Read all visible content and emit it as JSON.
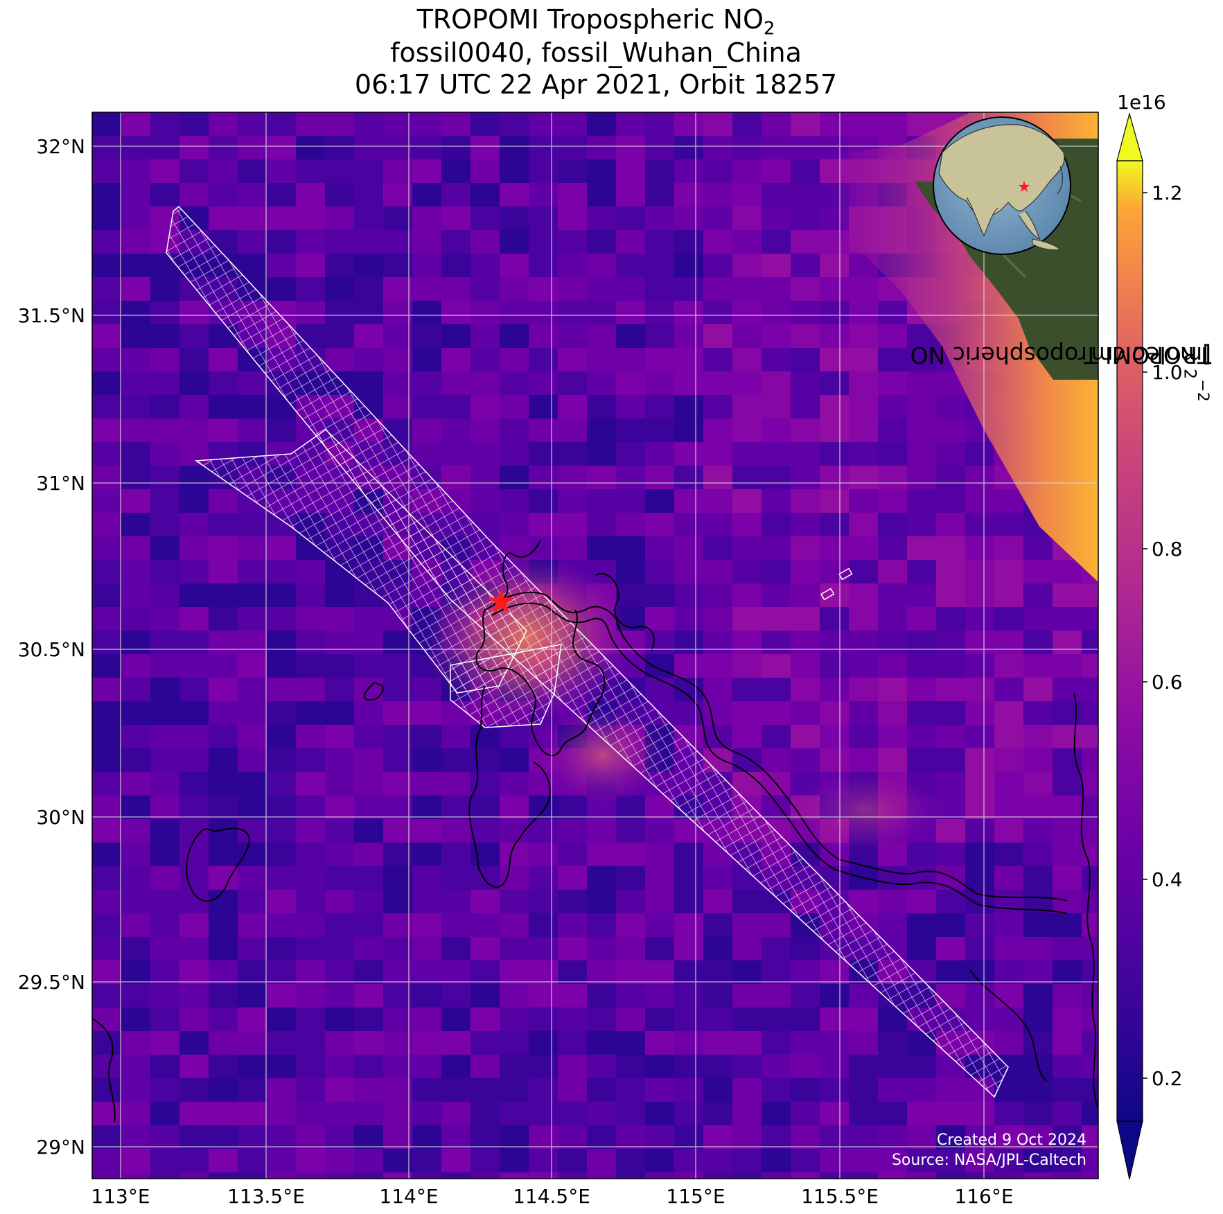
{
  "title": {
    "line1_text": "TROPOMI Tropospheric NO",
    "line1_sub": "2",
    "line2": "fossil0040, fossil_Wuhan_China",
    "line3": "06:17 UTC 22 Apr 2021, Orbit 18257"
  },
  "map": {
    "lat_labels": [
      "32°N",
      "31.5°N",
      "31°N",
      "30.5°N",
      "30°N",
      "29.5°N",
      "29°N"
    ],
    "lon_labels": [
      "113°E",
      "113.5°E",
      "114°E",
      "114.5°E",
      "115°E",
      "115.5°E",
      "116°E"
    ],
    "lat_range": [
      28.9,
      32.1
    ],
    "lon_range": [
      112.9,
      116.4
    ],
    "target_marker": "red-star",
    "target_location": {
      "lat": 30.64,
      "lon": 114.32
    },
    "inset": "globe-asia-with-red-star",
    "footer_created": "Created 9 Oct 2024",
    "footer_source": "Source: NASA/JPL-Caltech"
  },
  "colorbar": {
    "exponent_label": "1e16",
    "tick_labels": [
      "0.2",
      "0.4",
      "0.6",
      "0.8",
      "1.0",
      "1.2"
    ],
    "range": [
      0.15,
      1.25
    ],
    "title_text": "TROPOMI Tropospheric NO",
    "title_sub": "2",
    "title_units": " [molec cm",
    "title_sup": "−2",
    "title_close": "]",
    "colormap": "plasma",
    "extend": "both"
  },
  "chart_data": {
    "type": "heatmap",
    "title": "TROPOMI Tropospheric NO2 / fossil0040, fossil_Wuhan_China / 06:17 UTC 22 Apr 2021, Orbit 18257",
    "xlabel": "",
    "ylabel": "",
    "x_ticks": [
      "113°E",
      "113.5°E",
      "114°E",
      "114.5°E",
      "115°E",
      "115.5°E",
      "116°E"
    ],
    "y_ticks": [
      "29°N",
      "29.5°N",
      "30°N",
      "30.5°N",
      "31°N",
      "31.5°N",
      "32°N"
    ],
    "xlim": [
      112.9,
      116.4
    ],
    "ylim": [
      28.9,
      32.1
    ],
    "colorbar_label": "TROPOMI Tropospheric NO2 [molec cm−2]",
    "colorbar_scale": "1e16",
    "colorbar_range": [
      0.15,
      1.25
    ],
    "background_level": 0.35,
    "hotspot_wuhan": 0.75,
    "northeast_edge_max": 1.2
  }
}
